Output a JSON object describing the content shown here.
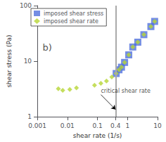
{
  "chart_data": {
    "type": "scatter",
    "title": "",
    "xlabel": "shear rate (1/s)",
    "ylabel": "shear stress (Pa)",
    "log": true,
    "grid": false,
    "legend": "upper left",
    "xlim": [
      0.001,
      10
    ],
    "ylim": [
      1,
      100
    ],
    "xticks": [
      0.001,
      0.01,
      0.1,
      0.4,
      1,
      10
    ],
    "yticks": [
      1,
      10,
      100
    ],
    "critical_shear_rate": 0.4,
    "series": [
      {
        "name": "imposed shear stress",
        "marker": "square",
        "x": [
          0.42,
          0.52,
          0.63,
          0.8,
          1.1,
          1.5,
          2.2,
          3.5,
          6.0,
          8.0
        ],
        "values": [
          6.0,
          7.0,
          7.8,
          9.5,
          13,
          18,
          22,
          30,
          42,
          52
        ]
      },
      {
        "name": "imposed shear rate",
        "marker": "diamond",
        "x": [
          0.005,
          0.007,
          0.012,
          0.02,
          0.08,
          0.13,
          0.2,
          0.3,
          0.42,
          0.52,
          0.63,
          0.8,
          1.1,
          1.5,
          2.2,
          3.5,
          6.0,
          8.0
        ],
        "values": [
          3.2,
          3.0,
          3.1,
          3.3,
          3.7,
          4.0,
          4.4,
          5.2,
          6.0,
          7.0,
          7.8,
          9.5,
          13,
          18,
          22,
          30,
          42,
          52
        ]
      }
    ],
    "annotations": [
      {
        "text": "critical shear rate",
        "x": 0.4,
        "y": 1.35,
        "text_x": 0.13,
        "text_y": 2.5
      },
      {
        "text": "b)",
        "x": 0.0015,
        "y": 22
      }
    ]
  }
}
